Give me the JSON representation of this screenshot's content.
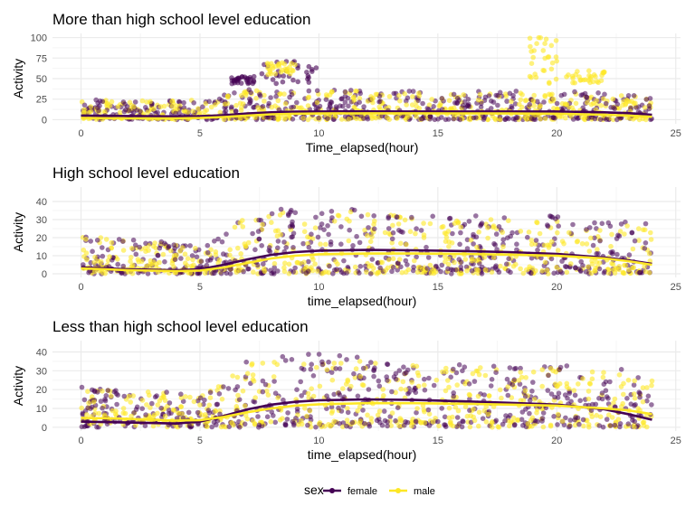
{
  "colors": {
    "female": "#440154",
    "male": "#fde725",
    "grid_major": "#ebebeb",
    "grid_minor": "#f5f5f5",
    "tick_text": "#4d4d4d"
  },
  "legend": {
    "title": "sex",
    "position": "bottom",
    "items": [
      {
        "key": "female",
        "label": "female"
      },
      {
        "key": "male",
        "label": "male"
      }
    ]
  },
  "chart_data": [
    {
      "type": "scatter",
      "title": "More than high school level education",
      "xlabel": "Time_elapsed(hour)",
      "ylabel": "Activity",
      "xlim": [
        -1.2,
        25.2
      ],
      "ylim": [
        -5,
        105
      ],
      "xticks": [
        0,
        5,
        10,
        15,
        20,
        25
      ],
      "yticks": [
        0,
        25,
        50,
        75,
        100
      ],
      "grid": true,
      "series": [
        {
          "name": "female",
          "smooth_x": [
            0,
            2,
            4,
            5,
            6,
            7,
            8,
            9,
            10,
            12,
            14,
            16,
            18,
            20,
            22,
            23,
            24
          ],
          "smooth_y": [
            5,
            4.5,
            4,
            4.2,
            5.5,
            7.5,
            9,
            9.8,
            10,
            10.1,
            10,
            10,
            10,
            10,
            9,
            8,
            6
          ]
        },
        {
          "name": "male",
          "smooth_x": [
            0,
            2,
            4,
            5,
            6,
            7,
            8,
            9,
            10,
            12,
            14,
            16,
            18,
            20,
            22,
            23,
            24
          ],
          "smooth_y": [
            2,
            1.5,
            1.5,
            2,
            3.2,
            5,
            6.5,
            7.2,
            7.5,
            7.8,
            7.8,
            7.6,
            7.5,
            7.2,
            6,
            5,
            3.5
          ]
        }
      ]
    },
    {
      "type": "scatter",
      "title": "High school level education",
      "xlabel": "time_elapsed(hour)",
      "ylabel": "Activity",
      "xlim": [
        -1.2,
        25.2
      ],
      "ylim": [
        -2,
        48
      ],
      "xticks": [
        0,
        5,
        10,
        15,
        20,
        25
      ],
      "yticks": [
        0,
        10,
        20,
        30,
        40
      ],
      "grid": true,
      "series": [
        {
          "name": "female",
          "smooth_x": [
            0,
            2,
            4,
            5,
            6,
            7,
            8,
            9,
            10,
            12,
            14,
            16,
            18,
            20,
            22,
            23,
            24
          ],
          "smooth_y": [
            3.5,
            2.5,
            2,
            2.5,
            5,
            8,
            10.5,
            12,
            12.8,
            13.2,
            13,
            12.6,
            12,
            11,
            9,
            7.5,
            5.5
          ]
        },
        {
          "name": "male",
          "smooth_x": [
            0,
            2,
            4,
            5,
            6,
            7,
            8,
            9,
            10,
            12,
            14,
            16,
            18,
            20,
            22,
            23,
            24
          ],
          "smooth_y": [
            3,
            2,
            1.5,
            1.8,
            3.5,
            6,
            8.5,
            10,
            10.8,
            11.2,
            11.2,
            11,
            10.6,
            10,
            8.5,
            7,
            5
          ]
        }
      ]
    },
    {
      "type": "scatter",
      "title": "Less than high school level education",
      "xlabel": "time_elapsed(hour)",
      "ylabel": "Activity",
      "xlim": [
        -1.2,
        25.2
      ],
      "ylim": [
        -2,
        46
      ],
      "xticks": [
        0,
        5,
        10,
        15,
        20,
        25
      ],
      "yticks": [
        0,
        10,
        20,
        30,
        40
      ],
      "grid": true,
      "series": [
        {
          "name": "female",
          "smooth_x": [
            0,
            2,
            4,
            5,
            6,
            7,
            8,
            9,
            10,
            12,
            14,
            16,
            18,
            20,
            22,
            23,
            24
          ],
          "smooth_y": [
            3,
            2.5,
            2,
            3,
            6,
            9.5,
            12,
            13.5,
            14.3,
            14.8,
            14.5,
            13.8,
            13,
            12,
            9.5,
            7,
            4
          ]
        },
        {
          "name": "male",
          "smooth_x": [
            0,
            2,
            4,
            5,
            6,
            7,
            8,
            9,
            10,
            12,
            14,
            16,
            18,
            20,
            22,
            23,
            24
          ],
          "smooth_y": [
            5,
            4.5,
            3.5,
            3.8,
            5.5,
            8,
            10,
            11.5,
            12.2,
            12.8,
            12.8,
            12.5,
            12,
            11.5,
            10,
            9,
            7
          ]
        }
      ]
    }
  ]
}
